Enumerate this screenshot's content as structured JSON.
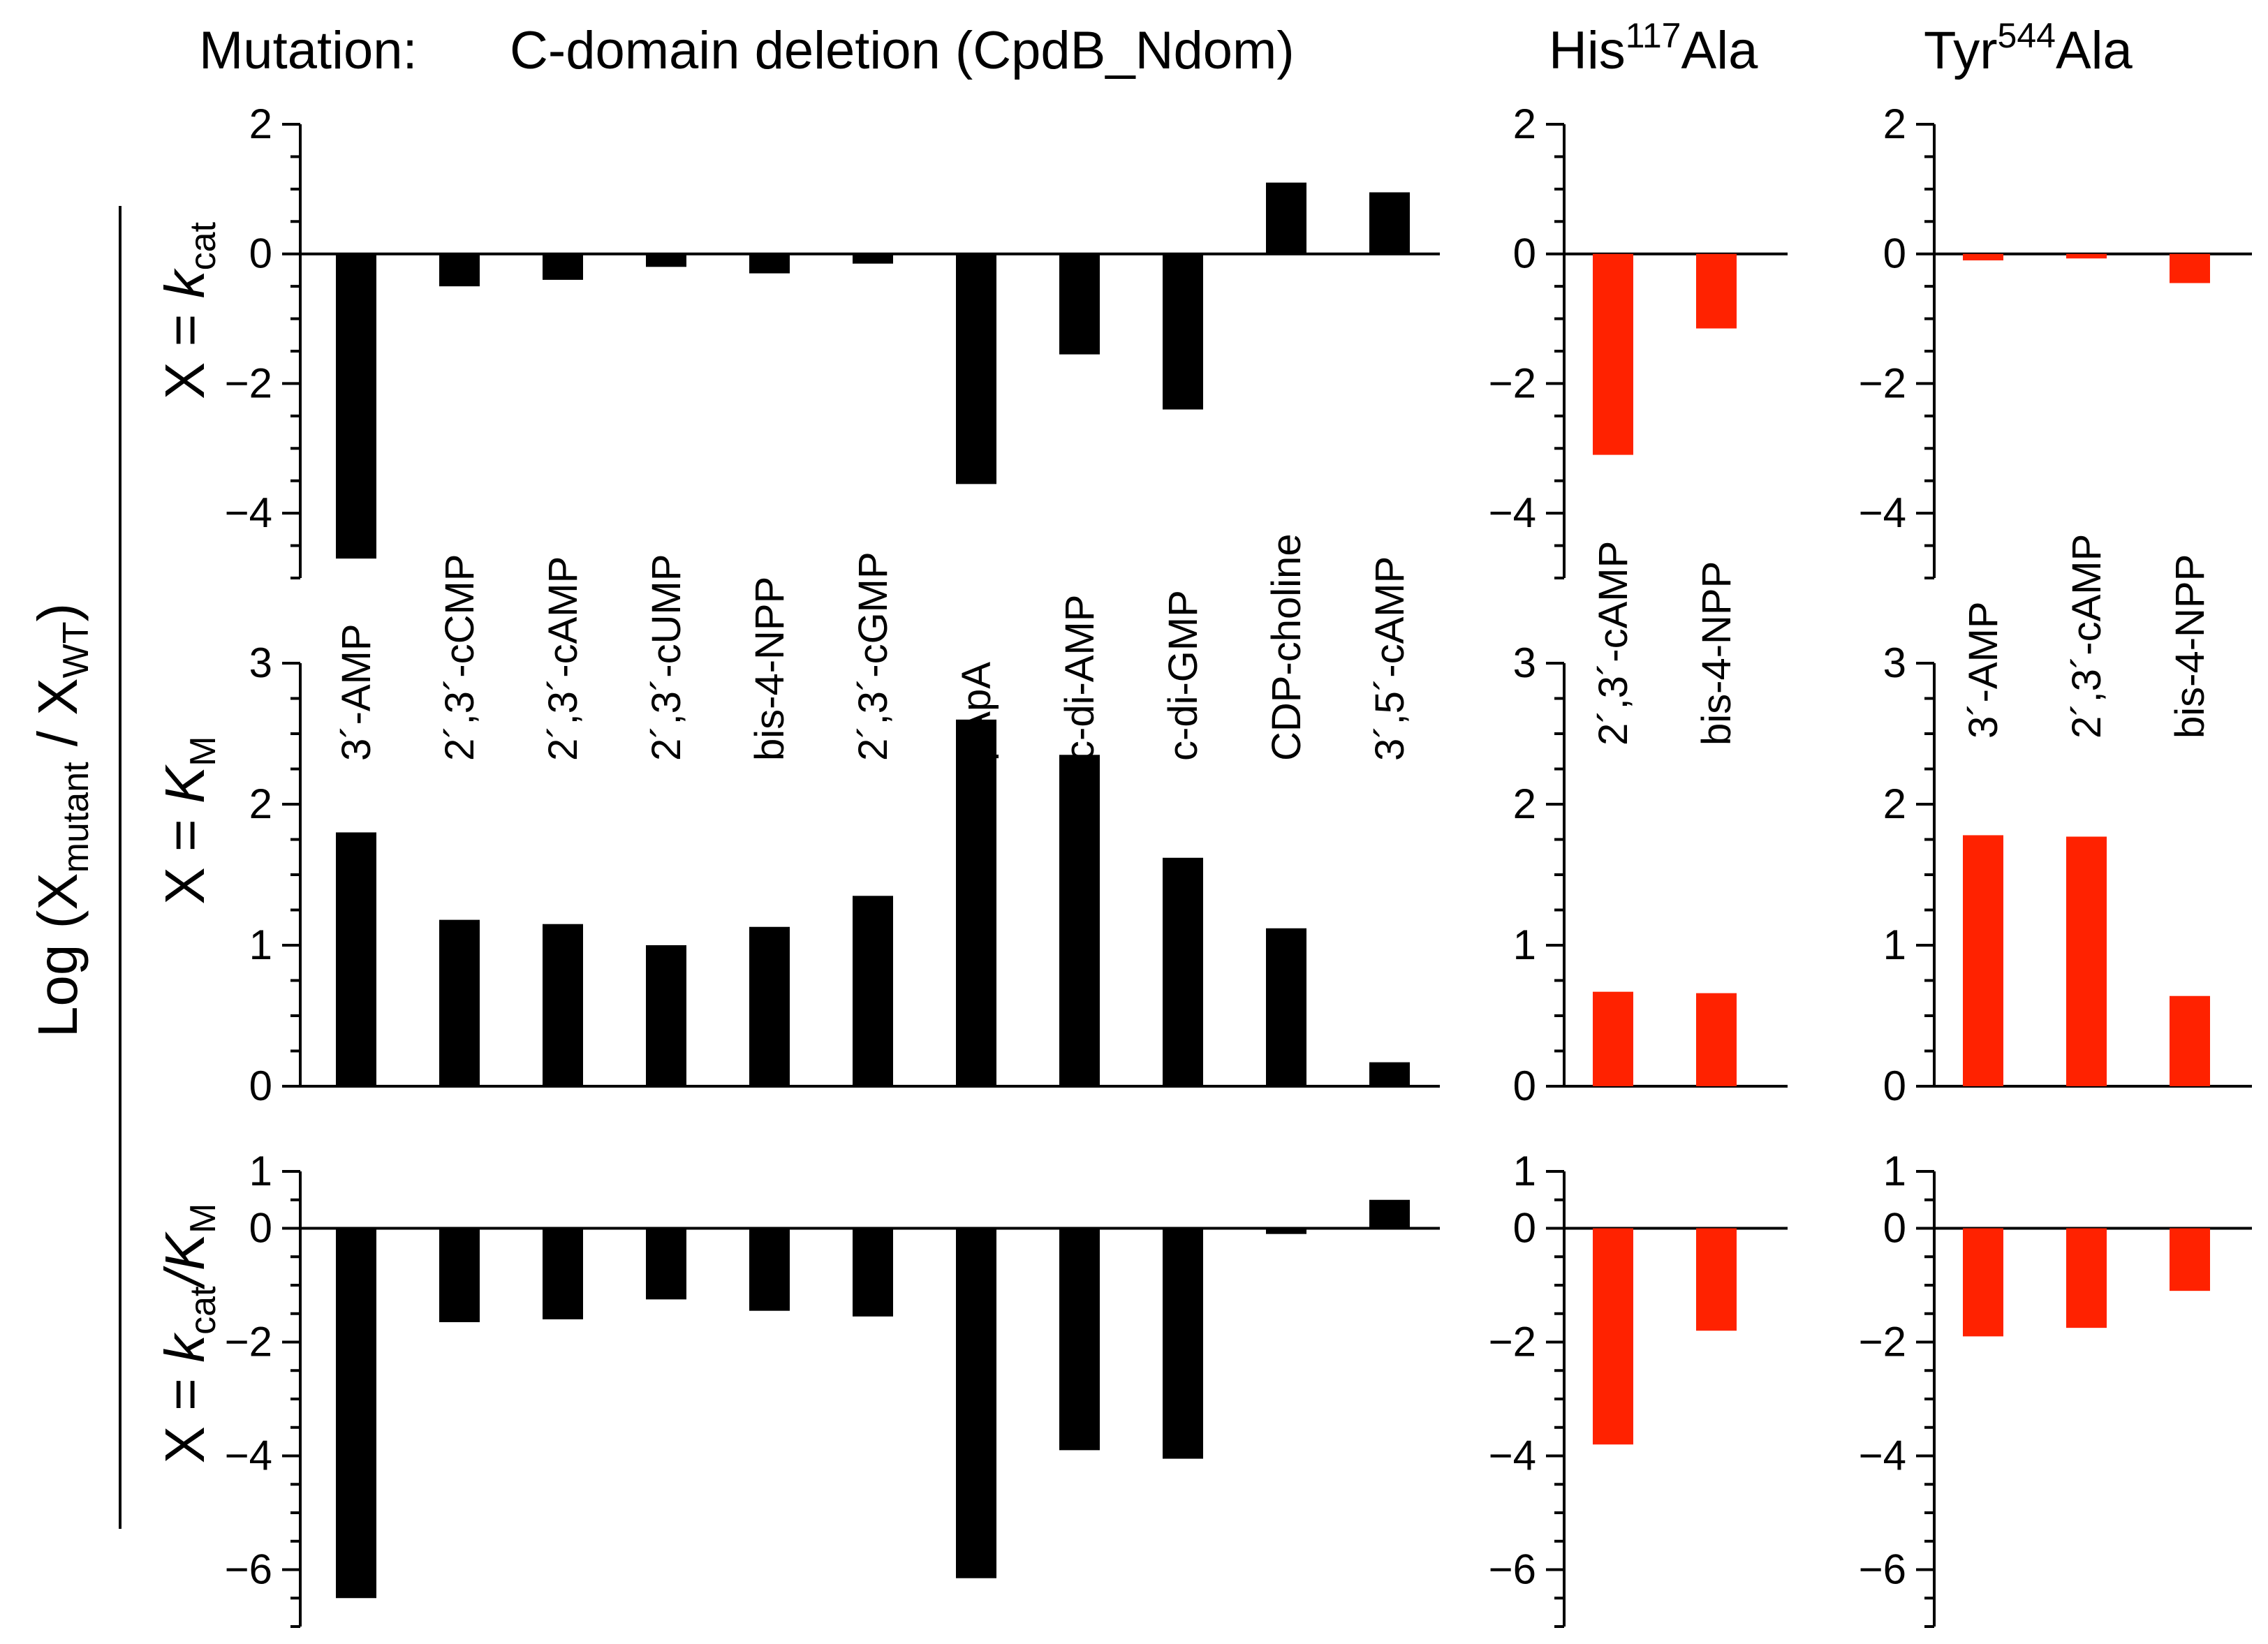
{
  "header": {
    "mutation_prefix": "Mutation:",
    "panel_titles": [
      {
        "text": "C-domain deletion (CpdB_Ndom)",
        "base": "",
        "sup": "",
        "tail": ""
      },
      {
        "text": "",
        "base": "His",
        "sup": "117",
        "tail": "Ala"
      },
      {
        "text": "",
        "base": "Tyr",
        "sup": "544",
        "tail": "Ala"
      }
    ]
  },
  "y_axis_label": {
    "prefix": "Log (X",
    "sub1": "mutant",
    "middle": " / X",
    "sub2": "WT",
    "suffix": ")"
  },
  "row_labels": [
    {
      "a": "X = ",
      "b": "k",
      "b_sub": "cat",
      "c": "",
      "c_sub": ""
    },
    {
      "a": "X = ",
      "b": "K",
      "b_sub": "M",
      "c": "",
      "c_sub": ""
    },
    {
      "a": "X = ",
      "b": "k",
      "b_sub": "cat",
      "c": "/K",
      "c_sub": "M"
    }
  ],
  "colors": {
    "cdomain": "#000000",
    "point_mutants": "#ff2200",
    "axis": "#000000"
  },
  "chart_data": [
    {
      "type": "bar",
      "panel": "C-domain deletion (CpdB_Ndom)",
      "row": "kcat",
      "categories": [
        "3´-AMP",
        "2´,3´-cCMP",
        "2´,3´-cAMP",
        "2´,3´-cUMP",
        "bis-4-NPP",
        "2´,3´-cGMP",
        "pApA",
        "c-di-AMP",
        "c-di-GMP",
        "CDP-choline",
        "3´,5´-cAMP"
      ],
      "values": [
        -4.7,
        -0.5,
        -0.4,
        -0.2,
        -0.3,
        -0.15,
        -3.55,
        -1.55,
        -2.4,
        1.1,
        0.95
      ],
      "ylim": [
        -5,
        2
      ],
      "yticks": [
        2,
        0,
        -2,
        -4
      ]
    },
    {
      "type": "bar",
      "panel": "C-domain deletion (CpdB_Ndom)",
      "row": "KM",
      "categories": [
        "3´-AMP",
        "2´,3´-cCMP",
        "2´,3´-cAMP",
        "2´,3´-cUMP",
        "bis-4-NPP",
        "2´,3´-cGMP",
        "pApA",
        "c-di-AMP",
        "c-di-GMP",
        "CDP-choline",
        "3´,5´-cAMP"
      ],
      "values": [
        1.8,
        1.18,
        1.15,
        1.0,
        1.13,
        1.35,
        2.6,
        2.35,
        1.62,
        1.12,
        0.17
      ],
      "ylim": [
        0,
        3
      ],
      "yticks": [
        3,
        2,
        1,
        0
      ]
    },
    {
      "type": "bar",
      "panel": "C-domain deletion (CpdB_Ndom)",
      "row": "kcat/KM",
      "categories": [
        "3´-AMP",
        "2´,3´-cCMP",
        "2´,3´-cAMP",
        "2´,3´-cUMP",
        "bis-4-NPP",
        "2´,3´-cGMP",
        "pApA",
        "c-di-AMP",
        "c-di-GMP",
        "CDP-choline",
        "3´,5´-cAMP"
      ],
      "values": [
        -6.5,
        -1.65,
        -1.6,
        -1.25,
        -1.45,
        -1.55,
        -6.15,
        -3.9,
        -4.05,
        -0.1,
        0.5
      ],
      "ylim": [
        -7,
        1
      ],
      "yticks": [
        1,
        0,
        -2,
        -4,
        -6
      ]
    },
    {
      "type": "bar",
      "panel": "His117Ala",
      "row": "kcat",
      "categories": [
        "2´,3´-cAMP",
        "bis-4-NPP"
      ],
      "values": [
        -3.1,
        -1.15
      ],
      "ylim": [
        -5,
        2
      ],
      "yticks": [
        2,
        0,
        -2,
        -4
      ]
    },
    {
      "type": "bar",
      "panel": "His117Ala",
      "row": "KM",
      "categories": [
        "2´,3´-cAMP",
        "bis-4-NPP"
      ],
      "values": [
        0.67,
        0.66
      ],
      "ylim": [
        0,
        3
      ],
      "yticks": [
        3,
        2,
        1,
        0
      ]
    },
    {
      "type": "bar",
      "panel": "His117Ala",
      "row": "kcat/KM",
      "categories": [
        "2´,3´-cAMP",
        "bis-4-NPP"
      ],
      "values": [
        -3.8,
        -1.8
      ],
      "ylim": [
        -7,
        1
      ],
      "yticks": [
        1,
        0,
        -2,
        -4,
        -6
      ]
    },
    {
      "type": "bar",
      "panel": "Tyr544Ala",
      "row": "kcat",
      "categories": [
        "3´-AMP",
        "2´,3´-cAMP",
        "bis-4-NPP"
      ],
      "values": [
        -0.1,
        -0.07,
        -0.45
      ],
      "ylim": [
        -5,
        2
      ],
      "yticks": [
        2,
        0,
        -2,
        -4
      ]
    },
    {
      "type": "bar",
      "panel": "Tyr544Ala",
      "row": "KM",
      "categories": [
        "3´-AMP",
        "2´,3´-cAMP",
        "bis-4-NPP"
      ],
      "values": [
        1.78,
        1.77,
        0.64
      ],
      "ylim": [
        0,
        3
      ],
      "yticks": [
        3,
        2,
        1,
        0
      ]
    },
    {
      "type": "bar",
      "panel": "Tyr544Ala",
      "row": "kcat/KM",
      "categories": [
        "3´-AMP",
        "2´,3´-cAMP",
        "bis-4-NPP"
      ],
      "values": [
        -1.9,
        -1.75,
        -1.1
      ],
      "ylim": [
        -7,
        1
      ],
      "yticks": [
        1,
        0,
        -2,
        -4,
        -6
      ]
    }
  ]
}
